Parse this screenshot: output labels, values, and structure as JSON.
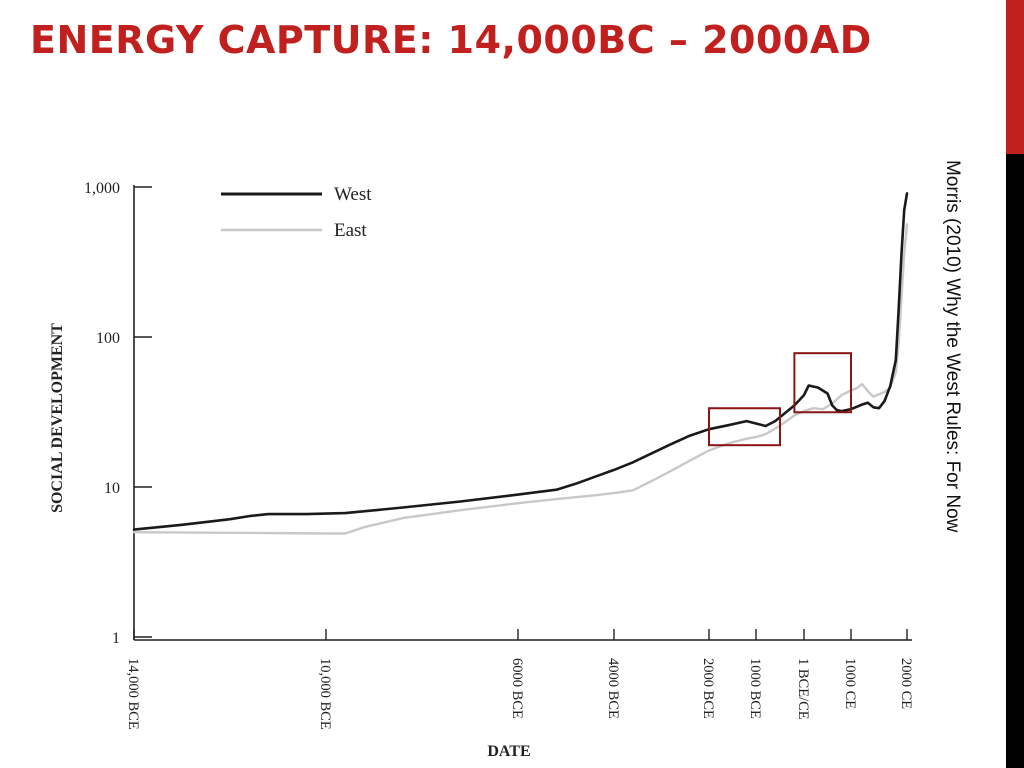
{
  "slide": {
    "title": "ENERGY CAPTURE: 14,000BC – 2000AD",
    "citation": "Morris (2010) Why the West Rules: For Now",
    "colors": {
      "title": "#c0201e",
      "edge_red": "#c0201e",
      "edge_black": "#000000"
    }
  },
  "chart_data": {
    "type": "line",
    "title": "",
    "xlabel": "DATE",
    "ylabel": "SOCIAL DEVELOPMENT",
    "y_scale": "log",
    "ylim": [
      1,
      1000
    ],
    "xlim": [
      -14000,
      2000
    ],
    "y_ticks": [
      {
        "value": 1,
        "label": "1"
      },
      {
        "value": 10,
        "label": "10"
      },
      {
        "value": 100,
        "label": "100"
      },
      {
        "value": 1000,
        "label": "1,000"
      }
    ],
    "x_ticks": [
      {
        "value": -14000,
        "label": "14,000 BCE"
      },
      {
        "value": -10000,
        "label": "10,000 BCE"
      },
      {
        "value": -6000,
        "label": "6000 BCE"
      },
      {
        "value": -4000,
        "label": "4000 BCE"
      },
      {
        "value": -2000,
        "label": "2000 BCE"
      },
      {
        "value": -1000,
        "label": "1000 BCE"
      },
      {
        "value": 0,
        "label": "1 BCE/CE"
      },
      {
        "value": 1000,
        "label": "1000 CE"
      },
      {
        "value": 2000,
        "label": "2000 CE"
      }
    ],
    "legend_position": "top-left",
    "series": [
      {
        "name": "West",
        "color": "#1a1a1a",
        "points": [
          [
            -14000,
            5.2
          ],
          [
            -13000,
            5.6
          ],
          [
            -12000,
            6.1
          ],
          [
            -11600,
            6.4
          ],
          [
            -11200,
            6.6
          ],
          [
            -10400,
            6.6
          ],
          [
            -9600,
            6.7
          ],
          [
            -8400,
            7.3
          ],
          [
            -7200,
            8.0
          ],
          [
            -6000,
            8.9
          ],
          [
            -5200,
            9.6
          ],
          [
            -4800,
            10.5
          ],
          [
            -4400,
            11.7
          ],
          [
            -4000,
            13.0
          ],
          [
            -3600,
            14.6
          ],
          [
            -3200,
            16.8
          ],
          [
            -2800,
            19.3
          ],
          [
            -2400,
            22.0
          ],
          [
            -2000,
            24.3
          ],
          [
            -1600,
            25.8
          ],
          [
            -1200,
            27.5
          ],
          [
            -1000,
            26.5
          ],
          [
            -800,
            25.5
          ],
          [
            -600,
            27.5
          ],
          [
            -400,
            31.0
          ],
          [
            -200,
            35.0
          ],
          [
            0,
            41.0
          ],
          [
            100,
            47.5
          ],
          [
            300,
            46.0
          ],
          [
            500,
            42.0
          ],
          [
            600,
            35.0
          ],
          [
            700,
            32.5
          ],
          [
            800,
            32.0
          ],
          [
            1000,
            33.0
          ],
          [
            1200,
            35.5
          ],
          [
            1300,
            36.5
          ],
          [
            1400,
            34.0
          ],
          [
            1500,
            33.5
          ],
          [
            1600,
            37.5
          ],
          [
            1700,
            47.0
          ],
          [
            1800,
            70.0
          ],
          [
            1850,
            150.0
          ],
          [
            1900,
            350.0
          ],
          [
            1950,
            700.0
          ],
          [
            2000,
            906.0
          ]
        ]
      },
      {
        "name": "East",
        "color": "#c8c8c8",
        "points": [
          [
            -14000,
            5.0
          ],
          [
            -12000,
            4.95
          ],
          [
            -10000,
            4.9
          ],
          [
            -9600,
            4.9
          ],
          [
            -9200,
            5.4
          ],
          [
            -8400,
            6.2
          ],
          [
            -7200,
            7.0
          ],
          [
            -6000,
            7.8
          ],
          [
            -5200,
            8.3
          ],
          [
            -4400,
            8.8
          ],
          [
            -4000,
            9.1
          ],
          [
            -3600,
            9.5
          ],
          [
            -3200,
            11.0
          ],
          [
            -2800,
            12.8
          ],
          [
            -2400,
            15.0
          ],
          [
            -2000,
            17.5
          ],
          [
            -1600,
            19.5
          ],
          [
            -1200,
            21.0
          ],
          [
            -1000,
            21.5
          ],
          [
            -800,
            22.5
          ],
          [
            -600,
            24.5
          ],
          [
            -400,
            27.0
          ],
          [
            -200,
            30.0
          ],
          [
            0,
            32.0
          ],
          [
            200,
            33.5
          ],
          [
            400,
            33.0
          ],
          [
            600,
            36.0
          ],
          [
            800,
            41.0
          ],
          [
            1000,
            44.0
          ],
          [
            1100,
            45.5
          ],
          [
            1200,
            48.5
          ],
          [
            1300,
            43.5
          ],
          [
            1400,
            40.0
          ],
          [
            1500,
            41.5
          ],
          [
            1600,
            43.0
          ],
          [
            1700,
            46.0
          ],
          [
            1800,
            58.0
          ],
          [
            1850,
            90.0
          ],
          [
            1900,
            180.0
          ],
          [
            1950,
            360.0
          ],
          [
            2000,
            565.0
          ]
        ]
      }
    ],
    "highlight_boxes": [
      {
        "x0": -2000,
        "x1": -500,
        "y0": 19.0,
        "y1": 33.5,
        "color": "#8b1414"
      },
      {
        "x0": -200,
        "x1": 1000,
        "y0": 31.5,
        "y1": 78.0,
        "color": "#8b1414"
      }
    ]
  }
}
